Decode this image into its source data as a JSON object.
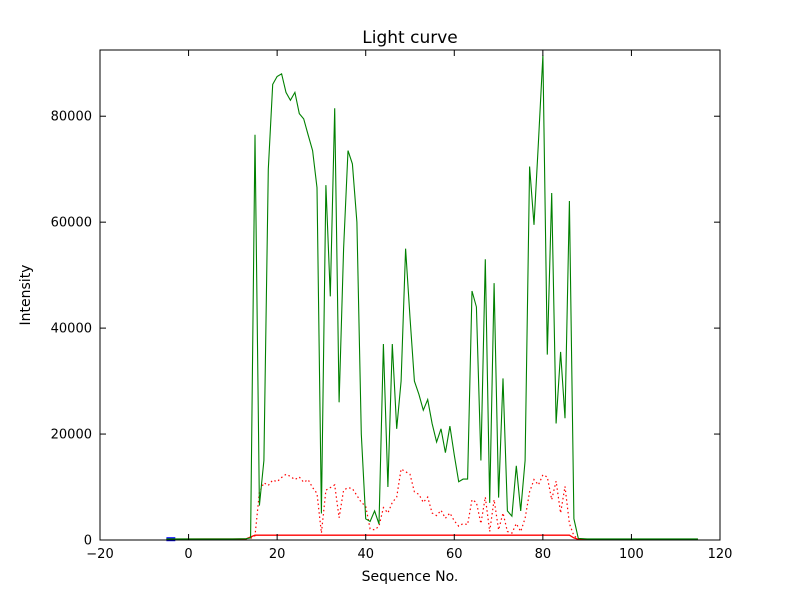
{
  "figure": {
    "background": "#ffffff",
    "frame_color": "#000000"
  },
  "chart_data": {
    "type": "line",
    "title": "Light curve",
    "xlabel": "Sequence No.",
    "ylabel": "Intensity",
    "xlim": [
      -20,
      120
    ],
    "ylim": [
      0,
      92500
    ],
    "grid": false,
    "legend": null,
    "xticks": [
      -20,
      0,
      20,
      40,
      60,
      80,
      100,
      120
    ],
    "xtick_labels": [
      "−20",
      "0",
      "20",
      "40",
      "60",
      "80",
      "100",
      "120"
    ],
    "yticks": [
      0,
      20000,
      40000,
      60000,
      80000
    ],
    "ytick_labels": [
      "0",
      "20000",
      "40000",
      "60000",
      "80000"
    ],
    "series": [
      {
        "name": "blue-marker",
        "color": "#0000ff",
        "style": "solid",
        "width": 4,
        "points": [
          [
            -5,
            150
          ],
          [
            -3,
            150
          ]
        ]
      },
      {
        "name": "red-baseline",
        "color": "#ff0000",
        "style": "solid",
        "width": 1.3,
        "points": [
          [
            -5,
            150
          ],
          [
            13,
            200
          ],
          [
            15,
            900
          ],
          [
            86,
            900
          ],
          [
            87,
            400
          ],
          [
            88,
            150
          ],
          [
            115,
            150
          ]
        ]
      },
      {
        "name": "red-dotted-background",
        "color": "#ff0000",
        "style": "dotted",
        "width": 1.2,
        "points": [
          [
            14,
            300
          ],
          [
            15,
            800
          ],
          [
            16,
            9000
          ],
          [
            17,
            10800
          ],
          [
            18,
            10300
          ],
          [
            19,
            11300
          ],
          [
            20,
            11000
          ],
          [
            21,
            11800
          ],
          [
            22,
            12400
          ],
          [
            23,
            12000
          ],
          [
            24,
            11400
          ],
          [
            25,
            11900
          ],
          [
            26,
            10900
          ],
          [
            27,
            11400
          ],
          [
            28,
            9900
          ],
          [
            29,
            8800
          ],
          [
            30,
            1300
          ],
          [
            31,
            9400
          ],
          [
            32,
            9900
          ],
          [
            33,
            10400
          ],
          [
            34,
            4200
          ],
          [
            35,
            9400
          ],
          [
            36,
            9900
          ],
          [
            37,
            9700
          ],
          [
            38,
            8400
          ],
          [
            39,
            7100
          ],
          [
            40,
            6400
          ],
          [
            41,
            2100
          ],
          [
            42,
            1900
          ],
          [
            43,
            2600
          ],
          [
            44,
            6100
          ],
          [
            45,
            5100
          ],
          [
            46,
            7100
          ],
          [
            47,
            8100
          ],
          [
            48,
            13400
          ],
          [
            49,
            12900
          ],
          [
            50,
            12400
          ],
          [
            51,
            9100
          ],
          [
            52,
            8600
          ],
          [
            53,
            7100
          ],
          [
            54,
            8100
          ],
          [
            55,
            5100
          ],
          [
            56,
            4600
          ],
          [
            57,
            5600
          ],
          [
            58,
            4100
          ],
          [
            59,
            5100
          ],
          [
            60,
            3600
          ],
          [
            61,
            2600
          ],
          [
            62,
            3100
          ],
          [
            63,
            2900
          ],
          [
            64,
            7600
          ],
          [
            65,
            7100
          ],
          [
            66,
            3100
          ],
          [
            67,
            8100
          ],
          [
            68,
            1600
          ],
          [
            69,
            7600
          ],
          [
            70,
            1900
          ],
          [
            71,
            5100
          ],
          [
            72,
            1600
          ],
          [
            73,
            1300
          ],
          [
            74,
            3100
          ],
          [
            75,
            1600
          ],
          [
            76,
            4100
          ],
          [
            77,
            9100
          ],
          [
            78,
            11400
          ],
          [
            79,
            10400
          ],
          [
            80,
            12300
          ],
          [
            81,
            11900
          ],
          [
            82,
            7600
          ],
          [
            83,
            11100
          ],
          [
            84,
            5100
          ],
          [
            85,
            10100
          ],
          [
            86,
            3100
          ],
          [
            87,
            800
          ],
          [
            88,
            200
          ]
        ]
      },
      {
        "name": "green-intensity",
        "color": "#008000",
        "style": "solid",
        "width": 1.1,
        "points": [
          [
            -5,
            200
          ],
          [
            0,
            200
          ],
          [
            5,
            200
          ],
          [
            10,
            200
          ],
          [
            13,
            250
          ],
          [
            14,
            400
          ],
          [
            15,
            76500
          ],
          [
            16,
            6500
          ],
          [
            17,
            15000
          ],
          [
            18,
            70000
          ],
          [
            19,
            86000
          ],
          [
            20,
            87500
          ],
          [
            21,
            88000
          ],
          [
            22,
            84500
          ],
          [
            23,
            83000
          ],
          [
            24,
            84500
          ],
          [
            25,
            80500
          ],
          [
            26,
            79500
          ],
          [
            27,
            76500
          ],
          [
            28,
            73500
          ],
          [
            29,
            66500
          ],
          [
            30,
            5000
          ],
          [
            31,
            67000
          ],
          [
            32,
            46000
          ],
          [
            33,
            81500
          ],
          [
            34,
            26000
          ],
          [
            35,
            55000
          ],
          [
            36,
            73500
          ],
          [
            37,
            71000
          ],
          [
            38,
            60000
          ],
          [
            39,
            20000
          ],
          [
            40,
            4000
          ],
          [
            41,
            3500
          ],
          [
            42,
            5500
          ],
          [
            43,
            3000
          ],
          [
            44,
            37000
          ],
          [
            45,
            10000
          ],
          [
            46,
            37000
          ],
          [
            47,
            21000
          ],
          [
            48,
            30000
          ],
          [
            49,
            55000
          ],
          [
            50,
            42000
          ],
          [
            51,
            30000
          ],
          [
            52,
            27500
          ],
          [
            53,
            24500
          ],
          [
            54,
            26500
          ],
          [
            55,
            22000
          ],
          [
            56,
            18500
          ],
          [
            57,
            21000
          ],
          [
            58,
            16500
          ],
          [
            59,
            21500
          ],
          [
            60,
            16000
          ],
          [
            61,
            11000
          ],
          [
            62,
            11500
          ],
          [
            63,
            11500
          ],
          [
            64,
            47000
          ],
          [
            65,
            44000
          ],
          [
            66,
            15000
          ],
          [
            67,
            53000
          ],
          [
            68,
            7000
          ],
          [
            69,
            48500
          ],
          [
            70,
            8000
          ],
          [
            71,
            30500
          ],
          [
            72,
            5500
          ],
          [
            73,
            4500
          ],
          [
            74,
            14000
          ],
          [
            75,
            5500
          ],
          [
            76,
            15000
          ],
          [
            77,
            70500
          ],
          [
            78,
            59500
          ],
          [
            79,
            75000
          ],
          [
            80,
            91500
          ],
          [
            81,
            35000
          ],
          [
            82,
            65500
          ],
          [
            83,
            22000
          ],
          [
            84,
            35500
          ],
          [
            85,
            23000
          ],
          [
            86,
            64000
          ],
          [
            87,
            4000
          ],
          [
            88,
            300
          ],
          [
            90,
            200
          ],
          [
            95,
            200
          ],
          [
            100,
            200
          ],
          [
            105,
            200
          ],
          [
            110,
            200
          ],
          [
            115,
            200
          ]
        ]
      }
    ]
  }
}
